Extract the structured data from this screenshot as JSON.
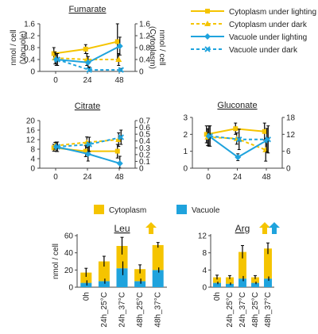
{
  "colors": {
    "cytoplasm": "#F5C400",
    "vacuole": "#1FA3DD",
    "axis": "#444444",
    "error": "#000000",
    "arrow_up": "#F5C400",
    "arrow_down": "#1FA3DD"
  },
  "legend": {
    "lines": [
      {
        "label": "Cytoplasm under lighting",
        "color": "#F5C400",
        "dashed": false,
        "marker": "square"
      },
      {
        "label": "Cytoplasm under dark",
        "color": "#F5C400",
        "dashed": true,
        "marker": "triangle"
      },
      {
        "label": "Vacuole under lighting",
        "color": "#1FA3DD",
        "dashed": false,
        "marker": "diamond"
      },
      {
        "label": "Vacuole under dark",
        "color": "#1FA3DD",
        "dashed": true,
        "marker": "x"
      }
    ],
    "bars": [
      {
        "label": "Cytoplasm",
        "color": "#F5C400"
      },
      {
        "label": "Vacuole",
        "color": "#1FA3DD"
      }
    ]
  },
  "chart_data": [
    {
      "type": "line",
      "title": "Fumarate",
      "ylabel_left": "nmol / cell\n(Vacuole)",
      "ylabel_right": "nmol / cell\n(Cytoplasm)",
      "x": [
        0,
        24,
        48
      ],
      "ylim_left": [
        0,
        1.6
      ],
      "yticks_left": [
        "0",
        "0.4",
        "0.8",
        "1.2",
        "1.6"
      ],
      "ylim_right": [
        0,
        1.6
      ],
      "yticks_right": [
        "0",
        "0.4",
        "0.8",
        "1.2",
        "1.6"
      ],
      "grid": false,
      "series": [
        {
          "name": "Cytoplasm under lighting",
          "axis": "right",
          "values": [
            0.6,
            0.75,
            1.0
          ],
          "err": [
            0.2,
            0.15,
            0.6
          ]
        },
        {
          "name": "Cytoplasm under dark",
          "axis": "right",
          "values": [
            0.45,
            0.4,
            0.4
          ],
          "err": [
            0.2,
            0.2,
            0.2
          ]
        },
        {
          "name": "Vacuole under lighting",
          "axis": "left",
          "values": [
            0.4,
            0.3,
            0.85
          ],
          "err": [
            0.2,
            0.2,
            0.3
          ]
        },
        {
          "name": "Vacuole under dark",
          "axis": "left",
          "values": [
            0.4,
            0.05,
            0.05
          ],
          "err": [
            0.2,
            0.1,
            0.05
          ]
        }
      ]
    },
    {
      "type": "line",
      "title": "Citrate",
      "ylabel_left": "",
      "ylabel_right": "",
      "x": [
        0,
        24,
        48
      ],
      "ylim_left": [
        0,
        20
      ],
      "yticks_left": [
        "0",
        "4",
        "8",
        "12",
        "16",
        "20"
      ],
      "ylim_right": [
        0,
        0.7
      ],
      "yticks_right": [
        "0",
        "0.1",
        "0.2",
        "0.3",
        "0.4",
        "0.5",
        "0.6",
        "0.7"
      ],
      "grid": false,
      "series": [
        {
          "name": "Cytoplasm under lighting",
          "axis": "right",
          "values": [
            0.3,
            0.25,
            0.25
          ],
          "err": [
            0.05,
            0.08,
            0.1
          ]
        },
        {
          "name": "Cytoplasm under dark",
          "axis": "right",
          "values": [
            0.33,
            0.38,
            0.42
          ],
          "err": [
            0.05,
            0.08,
            0.1
          ]
        },
        {
          "name": "Vacuole under lighting",
          "axis": "left",
          "values": [
            9,
            6,
            2
          ],
          "err": [
            2,
            3,
            3
          ]
        },
        {
          "name": "Vacuole under dark",
          "axis": "left",
          "values": [
            9,
            10,
            13
          ],
          "err": [
            2,
            3,
            3
          ]
        }
      ]
    },
    {
      "type": "line",
      "title": "Gluconate",
      "ylabel_left": "",
      "ylabel_right": "",
      "x": [
        0,
        24,
        48
      ],
      "ylim_left": [
        0,
        3
      ],
      "yticks_left": [
        "0",
        "1",
        "2",
        "3"
      ],
      "ylim_right": [
        0,
        18
      ],
      "yticks_right": [
        "0",
        "6",
        "12",
        "18"
      ],
      "grid": false,
      "series": [
        {
          "name": "Cytoplasm under lighting",
          "axis": "right",
          "values": [
            12,
            14,
            13
          ],
          "err": [
            3,
            2,
            3
          ]
        },
        {
          "name": "Cytoplasm under dark",
          "axis": "right",
          "values": [
            11,
            10.5,
            6.5
          ],
          "err": [
            3,
            2,
            4
          ]
        },
        {
          "name": "Vacuole under lighting",
          "axis": "left",
          "values": [
            1.9,
            0.65,
            1.65
          ],
          "err": [
            0.6,
            0.2,
            0.7
          ]
        },
        {
          "name": "Vacuole under dark",
          "axis": "left",
          "values": [
            1.9,
            1.7,
            1.7
          ],
          "err": [
            0.6,
            0.6,
            0.8
          ]
        }
      ]
    },
    {
      "type": "bar",
      "stacked": true,
      "title": "Leu",
      "ylabel": "nmol / cell",
      "categories": [
        "0h",
        "24h_25°C",
        "24h_37°C",
        "48h_25°C",
        "48h_37°C"
      ],
      "ylim": [
        0,
        60
      ],
      "yticks": [
        "0",
        "20",
        "40",
        "60"
      ],
      "grid": false,
      "series": [
        {
          "name": "Vacuole",
          "values": [
            5,
            7,
            22,
            7,
            20
          ],
          "err": [
            3,
            3,
            8,
            3,
            3
          ]
        },
        {
          "name": "Cytoplasm",
          "values": [
            12,
            23,
            26,
            14,
            29
          ],
          "err": [
            5,
            6,
            10,
            5,
            3
          ]
        }
      ],
      "arrows": [
        "up-cytoplasm"
      ]
    },
    {
      "type": "bar",
      "stacked": true,
      "title": "Arg",
      "ylabel": "",
      "categories": [
        "0h",
        "24h_25°C",
        "24h_37°C",
        "48h_25°C",
        "48h_37°C"
      ],
      "ylim": [
        0,
        12
      ],
      "yticks": [
        "0",
        "4",
        "8",
        "12"
      ],
      "grid": false,
      "series": [
        {
          "name": "Vacuole",
          "values": [
            1,
            0.8,
            2,
            1,
            2
          ],
          "err": [
            0.3,
            0.3,
            0.6,
            0.3,
            0.5
          ]
        },
        {
          "name": "Cytoplasm",
          "values": [
            1.3,
            1.5,
            6.2,
            1.3,
            7
          ],
          "err": [
            0.5,
            0.4,
            1.5,
            0.4,
            1.3
          ]
        }
      ],
      "arrows": [
        "up-cytoplasm",
        "up-vacuole"
      ]
    }
  ]
}
